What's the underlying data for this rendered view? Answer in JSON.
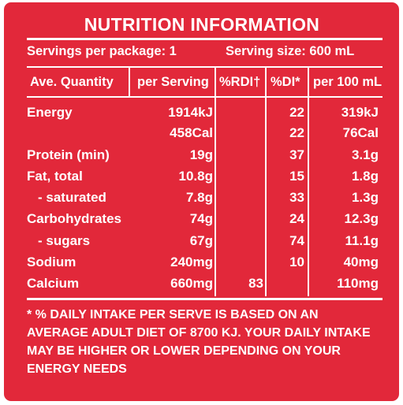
{
  "title": "NUTRITION INFORMATION",
  "servings_per_package": "Servings per package: 1",
  "serving_size": "Serving size: 600 mL",
  "headers": {
    "quantity": "Ave. Quantity",
    "per_serving": "per Serving",
    "rdi": "%RDI†",
    "di": "%DI*",
    "per_100": "per 100 mL"
  },
  "rows": [
    {
      "name": "Energy",
      "per_serving": "1914kJ",
      "rdi": "",
      "di": "22",
      "per_100": "319kJ"
    },
    {
      "name": "",
      "per_serving": "458Cal",
      "rdi": "",
      "di": "22",
      "per_100": "76Cal"
    },
    {
      "name": "Protein (min)",
      "per_serving": "19g",
      "rdi": "",
      "di": "37",
      "per_100": "3.1g"
    },
    {
      "name": "Fat, total",
      "per_serving": "10.8g",
      "rdi": "",
      "di": "15",
      "per_100": "1.8g"
    },
    {
      "name": "- saturated",
      "per_serving": "7.8g",
      "rdi": "",
      "di": "33",
      "per_100": "1.3g"
    },
    {
      "name": "Carbohydrates",
      "per_serving": "74g",
      "rdi": "",
      "di": "24",
      "per_100": "12.3g"
    },
    {
      "name": "- sugars",
      "per_serving": "67g",
      "rdi": "",
      "di": "74",
      "per_100": "11.1g"
    },
    {
      "name": "Sodium",
      "per_serving": "240mg",
      "rdi": "",
      "di": "10",
      "per_100": "40mg"
    },
    {
      "name": "Calcium",
      "per_serving": "660mg",
      "rdi": "83",
      "di": "",
      "per_100": "110mg"
    }
  ],
  "footnote": "* % DAILY INTAKE PER SERVE IS BASED ON  AN AVERAGE ADULT DIET OF 8700 KJ. YOUR  DAILY INTAKE MAY BE HIGHER OR LOWER  DEPENDING ON YOUR ENERGY NEEDS",
  "colors": {
    "background": "#e2283a",
    "text": "#ffffff"
  }
}
